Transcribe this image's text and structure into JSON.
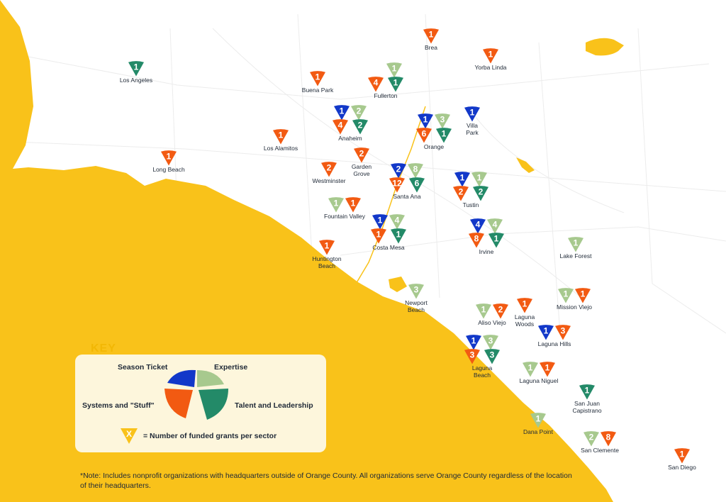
{
  "colors": {
    "ocean": "#f9c21a",
    "season_ticket": "#1238c9",
    "expertise": "#a7c98e",
    "systems_stuff": "#f25a12",
    "talent_leadership": "#238a68",
    "key_panel": "#fdf6dc",
    "key_title": "#f2b705"
  },
  "key": {
    "title": "KEY",
    "season_ticket": "Season Ticket",
    "expertise": "Expertise",
    "systems_stuff": "Systems and \"Stuff\"",
    "talent_leadership": "Talent and Leadership",
    "marker_symbol": "X",
    "marker_text": "= Number of funded grants per sector"
  },
  "footnote": "*Note: Includes nonprofit organizations with headquarters outside of Orange County. All organizations serve Orange County regardless of the location of their headquarters.",
  "cities": [
    {
      "name": "Brea",
      "season_ticket": null,
      "expertise": null,
      "systems_stuff": 1,
      "talent_leadership": null
    },
    {
      "name": "Yorba Linda",
      "season_ticket": null,
      "expertise": null,
      "systems_stuff": 1,
      "talent_leadership": null
    },
    {
      "name": "Los Angeles",
      "season_ticket": null,
      "expertise": null,
      "systems_stuff": null,
      "talent_leadership": 1
    },
    {
      "name": "Buena Park",
      "season_ticket": null,
      "expertise": null,
      "systems_stuff": 1,
      "talent_leadership": null
    },
    {
      "name": "Fullerton",
      "season_ticket": null,
      "expertise": 1,
      "systems_stuff": 4,
      "talent_leadership": 1
    },
    {
      "name": "Anaheim",
      "season_ticket": 1,
      "expertise": 2,
      "systems_stuff": 4,
      "talent_leadership": 2
    },
    {
      "name": "Orange",
      "season_ticket": 1,
      "expertise": 3,
      "systems_stuff": 6,
      "talent_leadership": 1
    },
    {
      "name": "Villa Park",
      "season_ticket": 1,
      "expertise": null,
      "systems_stuff": null,
      "talent_leadership": null
    },
    {
      "name": "Los Alamitos",
      "season_ticket": null,
      "expertise": null,
      "systems_stuff": 1,
      "talent_leadership": null
    },
    {
      "name": "Long Beach",
      "season_ticket": null,
      "expertise": null,
      "systems_stuff": 1,
      "talent_leadership": null
    },
    {
      "name": "Garden Grove",
      "season_ticket": null,
      "expertise": null,
      "systems_stuff": 2,
      "talent_leadership": null
    },
    {
      "name": "Westminster",
      "season_ticket": null,
      "expertise": null,
      "systems_stuff": 2,
      "talent_leadership": null
    },
    {
      "name": "Santa Ana",
      "season_ticket": 2,
      "expertise": 8,
      "systems_stuff": 12,
      "talent_leadership": 6
    },
    {
      "name": "Tustin",
      "season_ticket": 1,
      "expertise": 1,
      "systems_stuff": 2,
      "talent_leadership": 2
    },
    {
      "name": "Fountain Valley",
      "season_ticket": null,
      "expertise": 1,
      "systems_stuff": 1,
      "talent_leadership": null
    },
    {
      "name": "Costa Mesa",
      "season_ticket": 1,
      "expertise": 4,
      "systems_stuff": 1,
      "talent_leadership": 1
    },
    {
      "name": "Irvine",
      "season_ticket": 4,
      "expertise": 4,
      "systems_stuff": 8,
      "talent_leadership": 1
    },
    {
      "name": "Huntington Beach",
      "season_ticket": null,
      "expertise": null,
      "systems_stuff": 1,
      "talent_leadership": null
    },
    {
      "name": "Lake Forest",
      "season_ticket": null,
      "expertise": 1,
      "systems_stuff": null,
      "talent_leadership": null
    },
    {
      "name": "Newport Beach",
      "season_ticket": null,
      "expertise": 3,
      "systems_stuff": null,
      "talent_leadership": null
    },
    {
      "name": "Aliso Viejo",
      "season_ticket": null,
      "expertise": 1,
      "systems_stuff": 2,
      "talent_leadership": null
    },
    {
      "name": "Laguna Woods",
      "season_ticket": null,
      "expertise": null,
      "systems_stuff": 1,
      "talent_leadership": null
    },
    {
      "name": "Mission Viejo",
      "season_ticket": null,
      "expertise": 1,
      "systems_stuff": 1,
      "talent_leadership": null
    },
    {
      "name": "Laguna Hills",
      "season_ticket": 1,
      "expertise": null,
      "systems_stuff": 3,
      "talent_leadership": null
    },
    {
      "name": "Laguna Beach",
      "season_ticket": 1,
      "expertise": 3,
      "systems_stuff": 3,
      "talent_leadership": 3
    },
    {
      "name": "Laguna Niguel",
      "season_ticket": null,
      "expertise": 1,
      "systems_stuff": 1,
      "talent_leadership": null
    },
    {
      "name": "San Juan Capistrano",
      "season_ticket": null,
      "expertise": null,
      "systems_stuff": null,
      "talent_leadership": 1
    },
    {
      "name": "Dana Point",
      "season_ticket": null,
      "expertise": 1,
      "systems_stuff": null,
      "talent_leadership": null
    },
    {
      "name": "San Clemente",
      "season_ticket": null,
      "expertise": 2,
      "systems_stuff": 8,
      "talent_leadership": null
    },
    {
      "name": "San Diego",
      "season_ticket": null,
      "expertise": null,
      "systems_stuff": 1,
      "talent_leadership": null
    }
  ]
}
